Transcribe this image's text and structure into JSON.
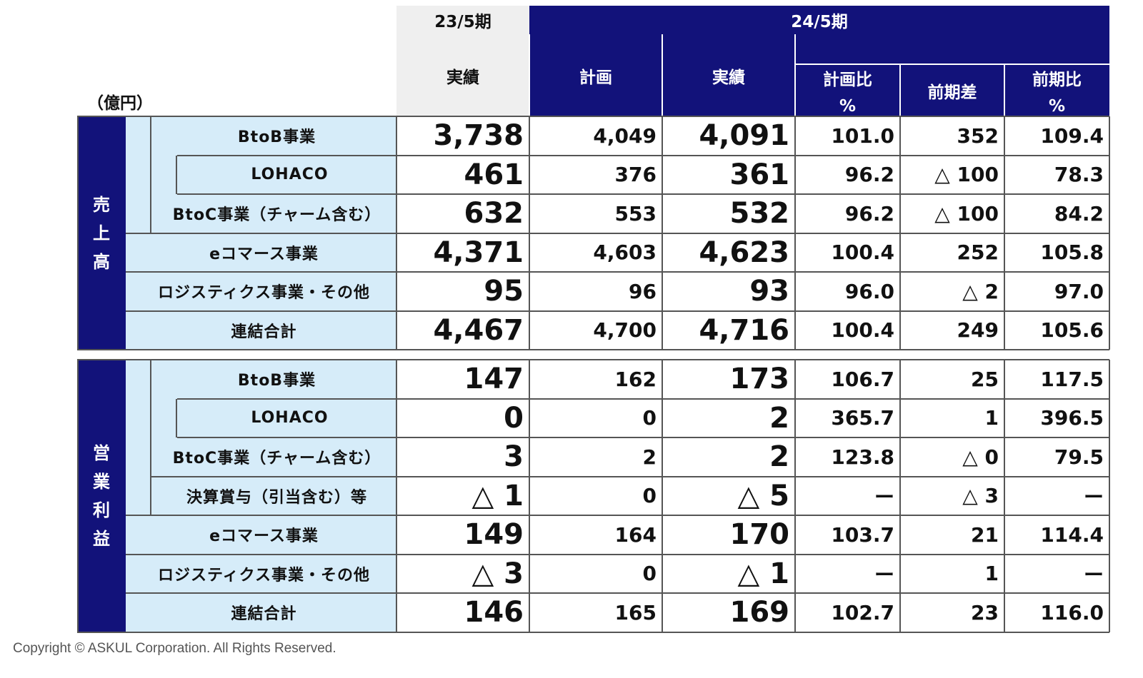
{
  "unit_label": "（億円）",
  "headers": {
    "prev_period": "23/5期",
    "curr_period": "24/5期",
    "columns": [
      {
        "line1": "実績",
        "line2": ""
      },
      {
        "line1": "計画",
        "line2": ""
      },
      {
        "line1": "実績",
        "line2": ""
      },
      {
        "line1": "計画比",
        "line2": "%"
      },
      {
        "line1": "前期差",
        "line2": ""
      },
      {
        "line1": "前期比",
        "line2": "%"
      }
    ]
  },
  "sections": [
    {
      "title": "売\n上\n高",
      "rows": [
        {
          "label": "BtoB事業",
          "values": [
            "3,738",
            "4,049",
            "4,091",
            "101.0",
            "352",
            "109.4"
          ]
        },
        {
          "label": "LOHACO",
          "values": [
            "461",
            "376",
            "361",
            "96.2",
            "△ 100",
            "78.3"
          ]
        },
        {
          "label": "BtoC事業（チャーム含む）",
          "values": [
            "632",
            "553",
            "532",
            "96.2",
            "△ 100",
            "84.2"
          ]
        },
        {
          "label": "eコマース事業",
          "values": [
            "4,371",
            "4,603",
            "4,623",
            "100.4",
            "252",
            "105.8"
          ]
        },
        {
          "label": "ロジスティクス事業・その他",
          "values": [
            "95",
            "96",
            "93",
            "96.0",
            "△ 2",
            "97.0"
          ]
        },
        {
          "label": "連結合計",
          "values": [
            "4,467",
            "4,700",
            "4,716",
            "100.4",
            "249",
            "105.6"
          ]
        }
      ]
    },
    {
      "title": "営\n業\n利\n益",
      "rows": [
        {
          "label": "BtoB事業",
          "values": [
            "147",
            "162",
            "173",
            "106.7",
            "25",
            "117.5"
          ]
        },
        {
          "label": "LOHACO",
          "values": [
            "0",
            "0",
            "2",
            "365.7",
            "1",
            "396.5"
          ]
        },
        {
          "label": "BtoC事業（チャーム含む）",
          "values": [
            "3",
            "2",
            "2",
            "123.8",
            "△ 0",
            "79.5"
          ]
        },
        {
          "label": "決算賞与（引当含む）等",
          "values": [
            "△ 1",
            "0",
            "△ 5",
            "ー",
            "△ 3",
            "ー"
          ]
        },
        {
          "label": "eコマース事業",
          "values": [
            "149",
            "164",
            "170",
            "103.7",
            "21",
            "114.4"
          ]
        },
        {
          "label": "ロジスティクス事業・その他",
          "values": [
            "△ 3",
            "0",
            "△ 1",
            "ー",
            "1",
            "ー"
          ]
        },
        {
          "label": "連結合計",
          "values": [
            "146",
            "165",
            "169",
            "102.7",
            "23",
            "116.0"
          ]
        }
      ]
    }
  ],
  "copyright": "Copyright © ASKUL Corporation. All Rights Reserved."
}
